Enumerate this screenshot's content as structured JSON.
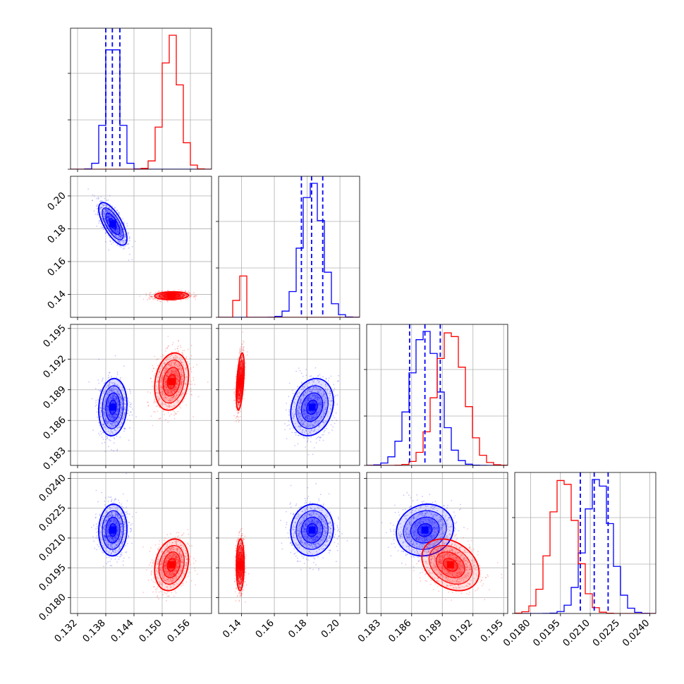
{
  "chart_data": {
    "type": "corner",
    "title": "",
    "parameters": [
      {
        "ticks": [
          "0.132",
          "0.138",
          "0.144",
          "0.150",
          "0.156"
        ],
        "range": [
          0.1305,
          0.1605
        ]
      },
      {
        "ticks": [
          "0.14",
          "0.16",
          "0.18",
          "0.20"
        ],
        "range": [
          0.126,
          0.212
        ]
      },
      {
        "ticks": [
          "0.183",
          "0.186",
          "0.189",
          "0.192",
          "0.195"
        ],
        "range": [
          0.1816,
          0.1954
        ]
      },
      {
        "ticks": [
          "0.0180",
          "0.0195",
          "0.0210",
          "0.0225",
          "0.0240"
        ],
        "range": [
          0.0172,
          0.0243
        ]
      }
    ],
    "series": [
      {
        "color": "#0000ff",
        "mean": [
          0.1395,
          0.183,
          0.1873,
          0.0214
        ],
        "sigma": [
          0.0015,
          0.0065,
          0.0014,
          0.00065
        ],
        "rho": [
          [
            1,
            -0.7,
            0.1,
            0.05
          ],
          [
            -0.7,
            1,
            0.2,
            0.05
          ],
          [
            0.1,
            0.2,
            1,
            0.1
          ],
          [
            0.05,
            0.05,
            0.1,
            1
          ]
        ]
      },
      {
        "color": "#ff0000",
        "mean": [
          0.152,
          0.1392,
          0.1898,
          0.01965
        ],
        "sigma": [
          0.0018,
          0.0012,
          0.0014,
          0.00065
        ],
        "rho": [
          [
            1,
            0.1,
            0.2,
            0.2
          ],
          [
            0.1,
            1,
            0.5,
            0.05
          ],
          [
            0.2,
            0.5,
            1,
            -0.3
          ],
          [
            0.2,
            0.05,
            -0.3,
            1
          ]
        ]
      }
    ],
    "quantile_lines": {
      "color": "#0000ff",
      "values": [
        [
          0.138,
          0.1394,
          0.141
        ],
        [
          0.1765,
          0.1827,
          0.1895
        ],
        [
          0.1858,
          0.1873,
          0.1888
        ],
        [
          0.0205,
          0.0212,
          0.0219
        ]
      ]
    },
    "contour_levels_sigma": [
      0.5,
      1.0,
      1.5,
      2.0
    ],
    "grid": true
  }
}
